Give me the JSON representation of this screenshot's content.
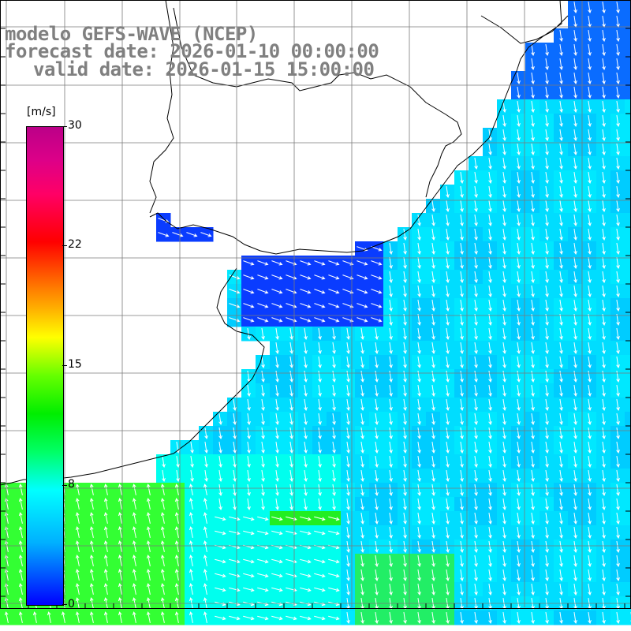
{
  "title": {
    "line1": "modelo GEFS-WAVE (NCEP)",
    "line2": "forecast date: 2026-01-10 00:00:00",
    "line3": "valid date: 2026-01-15 15:00:00"
  },
  "colorbar": {
    "unit": "[m/s]",
    "ticks": [
      "30",
      "22",
      "15",
      "8",
      "0"
    ],
    "tick_values": [
      30,
      22,
      15,
      8,
      0
    ]
  },
  "map": {
    "field": "wind speed",
    "units": "m/s",
    "background_land": "#ffffff",
    "grid_color": "#808080",
    "vector_color": "#ffffff",
    "palette": [
      "#0000ff",
      "#00b0ff",
      "#00ffff",
      "#00ff66",
      "#00ee00",
      "#66ff00",
      "#ffff00",
      "#ff6600",
      "#ff0000",
      "#bb0088"
    ]
  }
}
